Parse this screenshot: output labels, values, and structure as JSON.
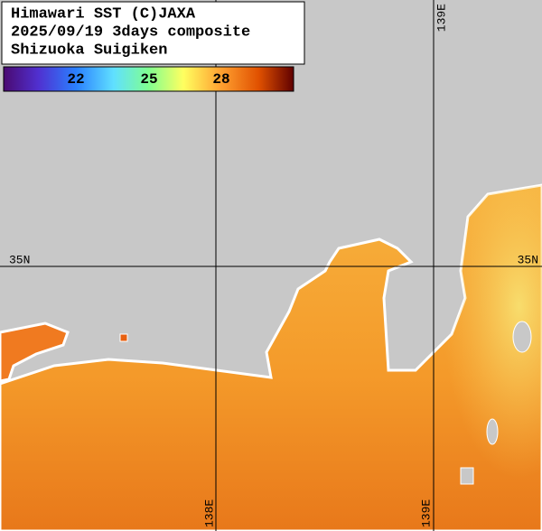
{
  "header": {
    "lines": [
      "Himawari SST (C)JAXA",
      "2025/09/19 3days composite",
      "Shizuoka Suigiken"
    ]
  },
  "colorbar": {
    "labels": [
      22,
      25,
      28
    ]
  },
  "grid_labels": {
    "top_lon": "139E",
    "left_lat": "35N",
    "right_lat": "35N",
    "bottom_lon_1": "138E",
    "bottom_lon_2": "139E"
  }
}
